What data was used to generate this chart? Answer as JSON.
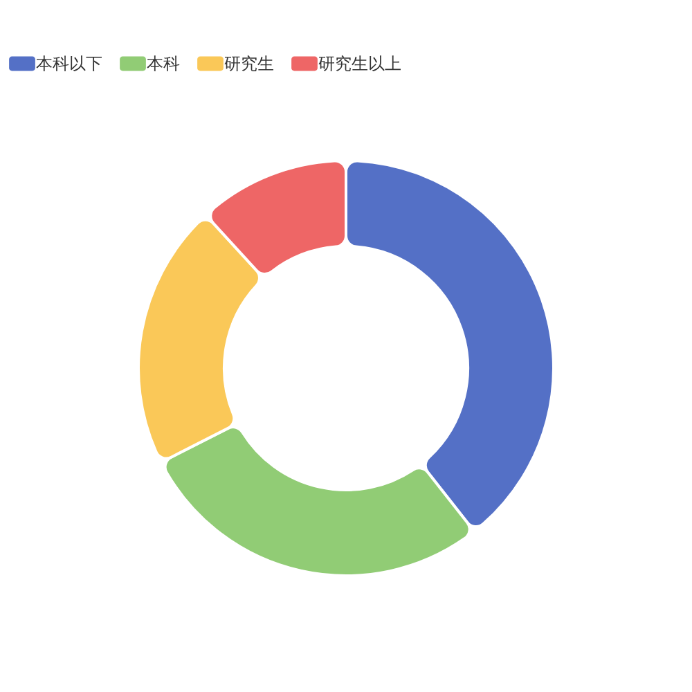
{
  "chart_data": {
    "type": "donut",
    "categories": [
      "本科以下",
      "本科",
      "研究生",
      "研究生以上"
    ],
    "values": [
      39.4,
      28.1,
      20.7,
      11.8
    ],
    "colors": [
      "#5470c6",
      "#91cc75",
      "#fac858",
      "#ee6666"
    ],
    "legend": "top"
  }
}
